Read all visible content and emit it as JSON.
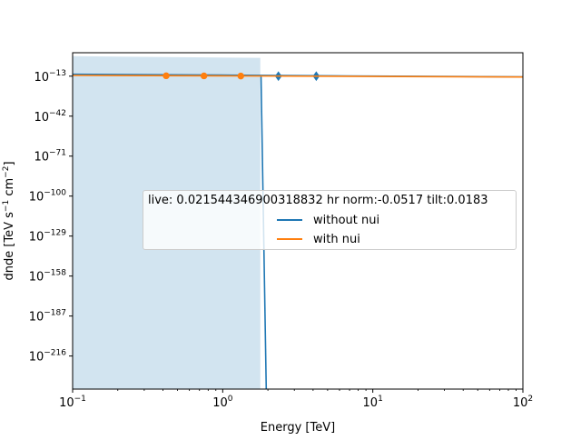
{
  "chart_data": {
    "type": "line",
    "xlabel": "Energy [TeV]",
    "ylabel_main": "dnde [TeV s",
    "ylabel_sup1": "−1",
    "ylabel_mid": " cm",
    "ylabel_sup2": "−2",
    "ylabel_end": "]",
    "xscale": "log",
    "yscale": "log",
    "xlim": [
      0.1,
      100
    ],
    "ylim_exponent": [
      -240,
      4
    ],
    "x_ticks": [
      {
        "base": "10",
        "exp": "−1",
        "value": 0.1
      },
      {
        "base": "10",
        "exp": "0",
        "value": 1
      },
      {
        "base": "10",
        "exp": "1",
        "value": 10
      },
      {
        "base": "10",
        "exp": "2",
        "value": 100
      }
    ],
    "y_ticks": [
      {
        "base": "10",
        "exp": "−13",
        "exponent": -13
      },
      {
        "base": "10",
        "exp": "−42",
        "exponent": -42
      },
      {
        "base": "10",
        "exp": "−71",
        "exponent": -71
      },
      {
        "base": "10",
        "exp": "−100",
        "exponent": -100
      },
      {
        "base": "10",
        "exp": "−129",
        "exponent": -129
      },
      {
        "base": "10",
        "exp": "−158",
        "exponent": -158
      },
      {
        "base": "10",
        "exp": "−187",
        "exponent": -187
      },
      {
        "base": "10",
        "exp": "−216",
        "exponent": -216
      }
    ],
    "legend": {
      "title": "live: 0.021544346900318832 hr norm:-0.0517 tilt:0.0183",
      "placement": "center-right"
    },
    "series": [
      {
        "name": "without nui",
        "color": "#1f77b4",
        "line": [
          [
            0.1,
            -11.6
          ],
          [
            1.0,
            -12.2
          ],
          [
            5.6,
            -12.8
          ],
          [
            100,
            -13.5
          ]
        ],
        "drop": [
          [
            1.8,
            -12.5
          ],
          [
            1.95,
            -240
          ]
        ],
        "markers": [
          [
            2.35,
            -13.0
          ],
          [
            4.2,
            -13.0
          ]
        ],
        "marker": "diamond"
      },
      {
        "name": "with nui",
        "color": "#ff7f0e",
        "line": [
          [
            0.1,
            -12.4
          ],
          [
            1.0,
            -12.8
          ],
          [
            10,
            -13.2
          ],
          [
            100,
            -13.6
          ]
        ],
        "markers": [
          [
            0.42,
            -12.7
          ],
          [
            0.75,
            -12.8
          ],
          [
            1.32,
            -12.9
          ]
        ],
        "marker": "circle"
      }
    ],
    "band": {
      "color": "#1f77b4",
      "opacity": 0.2,
      "x_range": [
        0.1,
        1.78
      ],
      "upper_exponent": [
        1.5,
        0.3
      ]
    }
  }
}
